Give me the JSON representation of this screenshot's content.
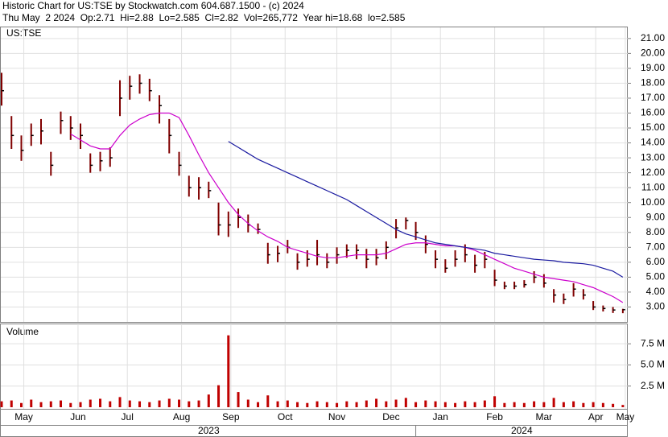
{
  "chart_data": {
    "type": "ohlc",
    "title": "Historic Chart for US:TSE by Stockwatch.com 604.687.1500 - (c) 2024",
    "subtitle": "Thu May  2 2024  Op:2.71  Hi=2.88  Lo=2.585  Cl=2.82  Vol=265,772  Year hi=18.68  lo=2.585",
    "symbol": "US:TSE",
    "bar_color": "#800000",
    "grid": true,
    "x": [
      0,
      4,
      8,
      12,
      16,
      20,
      24,
      28,
      32,
      36,
      40,
      44,
      48,
      52,
      56,
      60,
      64,
      68,
      72,
      76,
      80,
      84,
      88,
      92,
      96,
      100,
      104,
      108,
      112,
      116,
      120,
      124,
      128,
      132,
      136,
      140,
      144,
      148,
      152,
      156,
      160,
      164,
      168,
      172,
      176,
      180,
      184,
      188,
      192,
      196,
      200,
      204,
      208,
      212,
      216,
      220,
      224,
      228,
      232,
      236,
      240,
      244,
      248,
      252
    ],
    "high": [
      18.7,
      15.8,
      14.5,
      15.3,
      15.6,
      13.4,
      16.1,
      15.8,
      15.3,
      13.3,
      13.4,
      13.7,
      18.2,
      18.5,
      18.6,
      18.3,
      17.2,
      15.6,
      13.4,
      11.8,
      11.7,
      11.4,
      10.0,
      9.4,
      9.6,
      9.2,
      8.6,
      7.3,
      7.1,
      7.5,
      6.6,
      6.8,
      7.5,
      6.6,
      7.0,
      7.2,
      7.2,
      6.9,
      6.9,
      7.4,
      8.9,
      9.0,
      8.7,
      7.8,
      6.8,
      6.2,
      6.8,
      7.2,
      6.5,
      6.7,
      5.5,
      4.7,
      4.7,
      4.8,
      5.4,
      5.2,
      4.2,
      3.9,
      4.6,
      4.2,
      3.4,
      3.1,
      3.0,
      2.88
    ],
    "low": [
      16.5,
      13.6,
      12.8,
      13.8,
      13.9,
      11.8,
      14.6,
      14.2,
      13.6,
      12.0,
      12.1,
      12.4,
      15.8,
      16.9,
      17.3,
      16.8,
      15.3,
      13.3,
      11.8,
      10.4,
      10.2,
      10.3,
      7.8,
      7.7,
      8.3,
      8.0,
      7.9,
      5.9,
      6.0,
      6.6,
      5.5,
      5.7,
      5.8,
      5.6,
      5.9,
      6.3,
      6.2,
      5.6,
      5.8,
      6.2,
      7.6,
      8.2,
      7.5,
      6.6,
      5.6,
      5.3,
      5.7,
      6.0,
      5.3,
      5.6,
      4.4,
      4.2,
      4.2,
      4.3,
      4.6,
      4.3,
      3.3,
      3.2,
      3.7,
      3.5,
      2.8,
      2.7,
      2.6,
      2.585
    ],
    "close": [
      17.5,
      14.5,
      13.5,
      14.5,
      14.8,
      12.5,
      15.5,
      15.0,
      14.5,
      12.5,
      12.8,
      13.0,
      17.0,
      17.8,
      18.0,
      17.5,
      16.5,
      14.5,
      12.5,
      11.0,
      11.0,
      10.8,
      8.5,
      8.5,
      9.0,
      8.5,
      8.2,
      6.5,
      6.6,
      7.0,
      6.0,
      6.2,
      6.5,
      6.0,
      6.5,
      6.8,
      6.8,
      6.2,
      6.3,
      7.0,
      8.3,
      8.8,
      8.0,
      7.2,
      6.2,
      5.6,
      6.2,
      6.5,
      5.8,
      6.2,
      4.8,
      4.4,
      4.4,
      4.5,
      5.0,
      4.6,
      3.8,
      3.5,
      4.2,
      3.8,
      3.0,
      2.9,
      2.8,
      2.82
    ],
    "series": [
      {
        "color": "#cc00cc",
        "values": [
          null,
          null,
          null,
          null,
          null,
          null,
          null,
          14.6,
          14.2,
          13.8,
          13.6,
          13.6,
          14.5,
          15.2,
          15.6,
          15.9,
          16.0,
          16.0,
          15.7,
          14.5,
          13.2,
          12.0,
          11.0,
          10.0,
          9.2,
          8.6,
          8.1,
          7.7,
          7.4,
          7.0,
          6.8,
          6.6,
          6.4,
          6.3,
          6.3,
          6.4,
          6.5,
          6.5,
          6.5,
          6.6,
          6.9,
          7.2,
          7.3,
          7.3,
          7.2,
          7.1,
          7.1,
          7.0,
          6.8,
          6.5,
          6.2,
          5.9,
          5.6,
          5.4,
          5.2,
          5.0,
          4.9,
          4.8,
          4.7,
          4.5,
          4.3,
          4.0,
          3.7,
          3.3
        ]
      },
      {
        "color": "#1a1aa0",
        "values": [
          null,
          null,
          null,
          null,
          null,
          null,
          null,
          null,
          null,
          null,
          null,
          null,
          null,
          null,
          null,
          null,
          null,
          null,
          null,
          null,
          null,
          null,
          null,
          14.1,
          13.7,
          13.3,
          12.9,
          12.6,
          12.3,
          12.0,
          11.7,
          11.4,
          11.1,
          10.8,
          10.5,
          10.2,
          9.8,
          9.4,
          9.0,
          8.6,
          8.2,
          7.9,
          7.7,
          7.5,
          7.3,
          7.2,
          7.1,
          7.0,
          6.9,
          6.8,
          6.6,
          6.5,
          6.4,
          6.3,
          6.2,
          6.15,
          6.1,
          6.0,
          5.95,
          5.9,
          5.8,
          5.6,
          5.4,
          5.0
        ]
      }
    ],
    "xlim": [
      0,
      254
    ],
    "xticks": [
      {
        "value": 9,
        "label": "May"
      },
      {
        "value": 31,
        "label": "Jun"
      },
      {
        "value": 51,
        "label": "Jul"
      },
      {
        "value": 73,
        "label": "Aug"
      },
      {
        "value": 93,
        "label": "Sep"
      },
      {
        "value": 115,
        "label": "Oct"
      },
      {
        "value": 136,
        "label": "Nov"
      },
      {
        "value": 158,
        "label": "Dec"
      },
      {
        "value": 178,
        "label": "Jan"
      },
      {
        "value": 200,
        "label": "Feb"
      },
      {
        "value": 220,
        "label": "Mar"
      },
      {
        "value": 241,
        "label": "Apr"
      },
      {
        "value": 253,
        "label": "May"
      }
    ],
    "x_groups": [
      {
        "label": "2023",
        "from": 0,
        "to": 168
      },
      {
        "label": "2024",
        "from": 168,
        "to": 254
      }
    ],
    "ylim": [
      2,
      21.8
    ],
    "yticks": [
      {
        "value": 3,
        "label": "3.00"
      },
      {
        "value": 4,
        "label": "4.00"
      },
      {
        "value": 5,
        "label": "5.00"
      },
      {
        "value": 6,
        "label": "6.00"
      },
      {
        "value": 7,
        "label": "7.00"
      },
      {
        "value": 8,
        "label": "8.00"
      },
      {
        "value": 9,
        "label": "9.00"
      },
      {
        "value": 10,
        "label": "10.00"
      },
      {
        "value": 11,
        "label": "11.00"
      },
      {
        "value": 12,
        "label": "12.00"
      },
      {
        "value": 13,
        "label": "13.00"
      },
      {
        "value": 14,
        "label": "14.00"
      },
      {
        "value": 15,
        "label": "15.00"
      },
      {
        "value": 16,
        "label": "16.00"
      },
      {
        "value": 17,
        "label": "17.00"
      },
      {
        "value": 18,
        "label": "18.00"
      },
      {
        "value": 19,
        "label": "19.00"
      },
      {
        "value": 20,
        "label": "20.00"
      },
      {
        "value": 21,
        "label": "21.00"
      }
    ],
    "volume": {
      "label": "Volume",
      "color": "#c00000",
      "values": [
        0.7,
        0.8,
        0.5,
        0.9,
        0.6,
        0.7,
        0.8,
        0.5,
        0.6,
        0.9,
        1.0,
        0.7,
        1.2,
        0.8,
        0.7,
        0.6,
        0.8,
        1.0,
        0.9,
        0.7,
        0.8,
        1.5,
        2.6,
        8.5,
        1.8,
        0.9,
        0.6,
        1.4,
        0.7,
        0.8,
        0.6,
        0.5,
        0.7,
        0.6,
        0.5,
        0.7,
        0.6,
        0.8,
        1.0,
        0.7,
        0.9,
        1.1,
        0.6,
        0.8,
        0.7,
        0.6,
        0.5,
        0.7,
        0.6,
        0.8,
        1.3,
        0.5,
        0.6,
        0.5,
        0.7,
        0.6,
        1.1,
        0.6,
        0.7,
        0.5,
        0.6,
        0.5,
        0.4,
        0.27
      ],
      "ylim": [
        0,
        9.8
      ],
      "yticks": [
        {
          "value": 2.5,
          "label": "2.5 M"
        },
        {
          "value": 5,
          "label": "5.0 M"
        },
        {
          "value": 7.5,
          "label": "7.5 M"
        }
      ]
    }
  }
}
